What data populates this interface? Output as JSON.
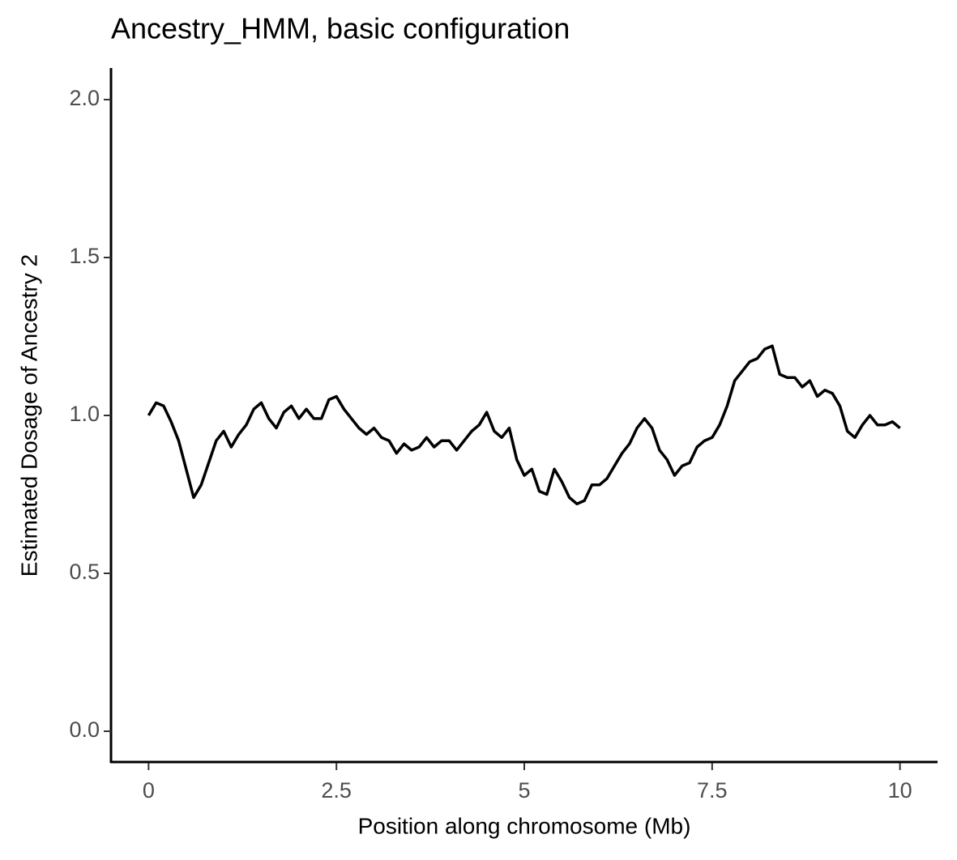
{
  "chart_data": {
    "type": "line",
    "title": "Ancestry_HMM, basic configuration",
    "x_label": "Position along chromosome (Mb)",
    "y_label": "Estimated Dosage of Ancestry 2",
    "x": [
      0,
      0.1,
      0.2,
      0.3,
      0.4,
      0.5,
      0.6,
      0.7,
      0.8,
      0.9,
      1,
      1.1,
      1.2,
      1.3,
      1.4,
      1.5,
      1.6,
      1.7,
      1.8,
      1.9,
      2,
      2.1,
      2.2,
      2.3,
      2.4,
      2.5,
      2.6,
      2.7,
      2.8,
      2.9,
      3,
      3.1,
      3.2,
      3.3,
      3.4,
      3.5,
      3.6,
      3.7,
      3.8,
      3.9,
      4,
      4.1,
      4.2,
      4.3,
      4.4,
      4.5,
      4.6,
      4.7,
      4.8,
      4.9,
      5,
      5.1,
      5.2,
      5.3,
      5.4,
      5.5,
      5.6,
      5.7,
      5.8,
      5.9,
      6,
      6.1,
      6.2,
      6.3,
      6.4,
      6.5,
      6.6,
      6.7,
      6.8,
      6.9,
      7,
      7.1,
      7.2,
      7.3,
      7.4,
      7.5,
      7.6,
      7.7,
      7.8,
      7.9,
      8,
      8.1,
      8.2,
      8.3,
      8.4,
      8.5,
      8.6,
      8.7,
      8.8,
      8.9,
      9,
      9.1,
      9.2,
      9.3,
      9.4,
      9.5,
      9.6,
      9.7,
      9.8,
      9.9,
      10
    ],
    "series": [
      {
        "color": "#000000",
        "values": [
          1.0,
          1.04,
          1.03,
          0.98,
          0.92,
          0.83,
          0.74,
          0.78,
          0.85,
          0.92,
          0.95,
          0.9,
          0.94,
          0.97,
          1.02,
          1.04,
          0.99,
          0.96,
          1.01,
          1.03,
          0.99,
          1.02,
          0.99,
          0.99,
          1.05,
          1.06,
          1.02,
          0.99,
          0.96,
          0.94,
          0.96,
          0.93,
          0.92,
          0.88,
          0.91,
          0.89,
          0.9,
          0.93,
          0.9,
          0.92,
          0.92,
          0.89,
          0.92,
          0.95,
          0.97,
          1.01,
          0.95,
          0.93,
          0.96,
          0.86,
          0.81,
          0.83,
          0.76,
          0.75,
          0.83,
          0.79,
          0.74,
          0.72,
          0.73,
          0.78,
          0.78,
          0.8,
          0.84,
          0.88,
          0.91,
          0.96,
          0.99,
          0.96,
          0.89,
          0.86,
          0.81,
          0.84,
          0.85,
          0.9,
          0.92,
          0.93,
          0.97,
          1.03,
          1.11,
          1.14,
          1.17,
          1.18,
          1.21,
          1.22,
          1.13,
          1.12,
          1.12,
          1.09,
          1.11,
          1.06,
          1.08,
          1.07,
          1.03,
          0.95,
          0.93,
          0.97,
          1.0,
          0.97,
          0.97,
          0.98,
          0.96
        ]
      }
    ],
    "xlim": [
      -0.5,
      10.5
    ],
    "ylim": [
      -0.1,
      2.1
    ],
    "xticks": [
      0,
      2.5,
      5,
      7.5,
      10
    ],
    "yticks": [
      {
        "value": 0,
        "label": "0.0"
      },
      0.5,
      {
        "value": 1,
        "label": "1.0"
      },
      1.5,
      {
        "value": 2,
        "label": "2.0"
      }
    ]
  }
}
